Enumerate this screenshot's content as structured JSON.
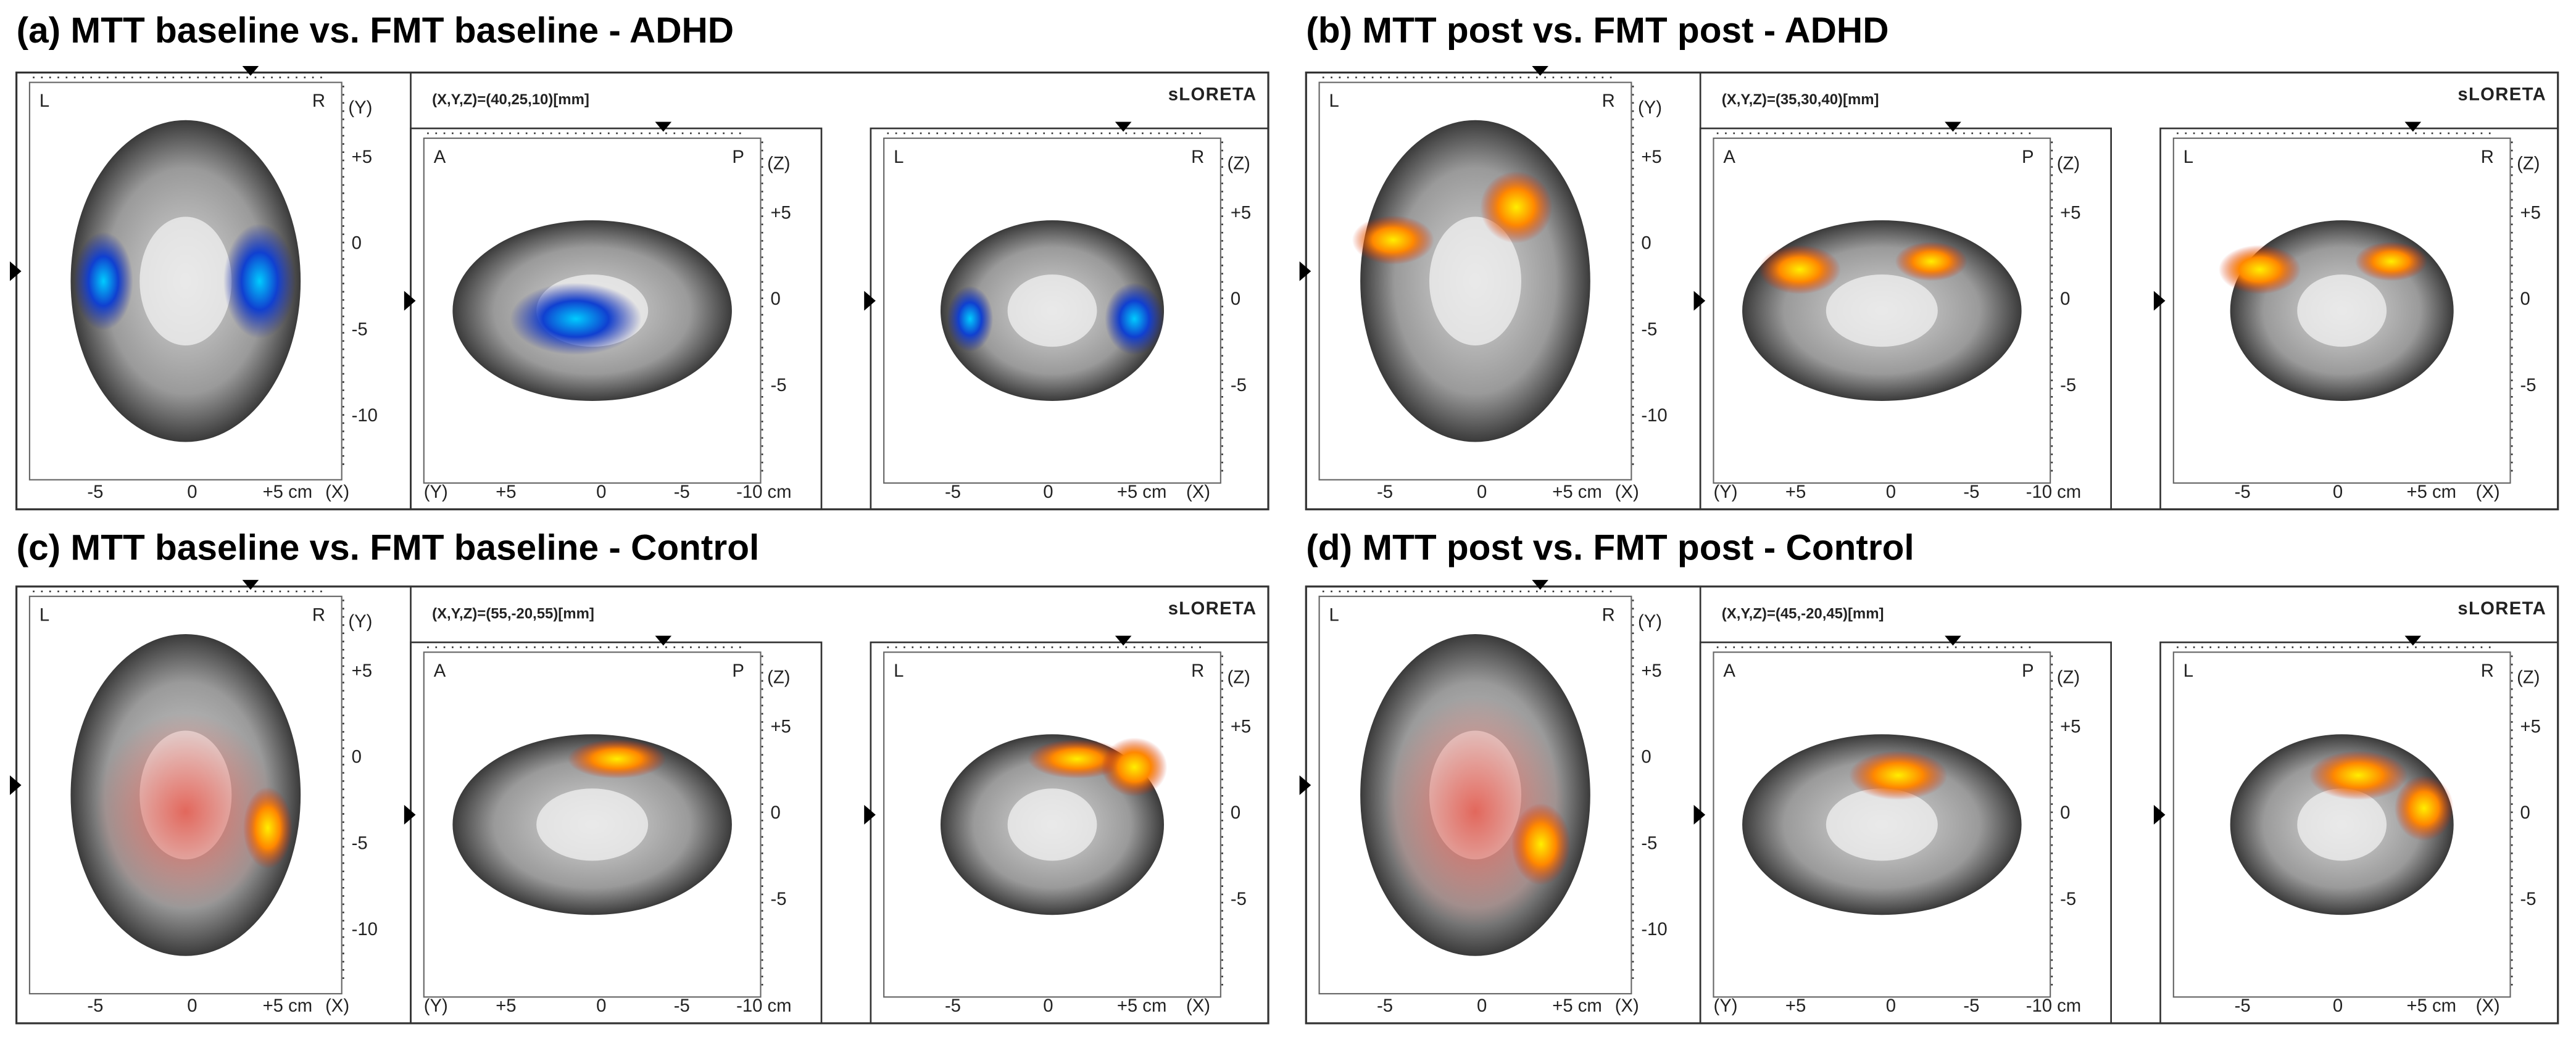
{
  "panels": [
    {
      "title": "(a) MTT baseline vs. FMT baseline - ADHD",
      "coords": "(X,Y,Z)=(40,25,10)[mm]",
      "brand": "sLORETA",
      "views": [
        {
          "left": "L",
          "right": "R",
          "axis": "(Y)",
          "side_ticks": [
            "+5",
            "0",
            "-5",
            "-10"
          ],
          "bottom_ticks": [
            "-5",
            "0",
            "+5 cm"
          ],
          "bottom_axis": "(X)"
        },
        {
          "left": "A",
          "right": "P",
          "axis": "(Z)",
          "side_ticks": [
            "+5",
            "0",
            "-5"
          ],
          "bottom_axis": "(Y)",
          "bottom_ticks": [
            "+5",
            "0",
            "-5",
            "-10 cm"
          ]
        },
        {
          "left": "L",
          "right": "R",
          "axis": "(Z)",
          "side_ticks": [
            "+5",
            "0",
            "-5"
          ],
          "bottom_ticks": [
            "-5",
            "0",
            "+5 cm"
          ],
          "bottom_axis": "(X)"
        }
      ]
    },
    {
      "title": "(b) MTT post vs. FMT post - ADHD",
      "coords": "(X,Y,Z)=(35,30,40)[mm]",
      "brand": "sLORETA",
      "views": [
        {
          "left": "L",
          "right": "R",
          "axis": "(Y)",
          "side_ticks": [
            "+5",
            "0",
            "-5",
            "-10"
          ],
          "bottom_ticks": [
            "-5",
            "0",
            "+5 cm"
          ],
          "bottom_axis": "(X)"
        },
        {
          "left": "A",
          "right": "P",
          "axis": "(Z)",
          "side_ticks": [
            "+5",
            "0",
            "-5"
          ],
          "bottom_axis": "(Y)",
          "bottom_ticks": [
            "+5",
            "0",
            "-5",
            "-10 cm"
          ]
        },
        {
          "left": "L",
          "right": "R",
          "axis": "(Z)",
          "side_ticks": [
            "+5",
            "0",
            "-5"
          ],
          "bottom_ticks": [
            "-5",
            "0",
            "+5 cm"
          ],
          "bottom_axis": "(X)"
        }
      ]
    },
    {
      "title": "(c) MTT baseline vs. FMT baseline - Control",
      "coords": "(X,Y,Z)=(55,-20,55)[mm]",
      "brand": "sLORETA",
      "views": [
        {
          "left": "L",
          "right": "R",
          "axis": "(Y)",
          "side_ticks": [
            "+5",
            "0",
            "-5",
            "-10"
          ],
          "bottom_ticks": [
            "-5",
            "0",
            "+5 cm"
          ],
          "bottom_axis": "(X)"
        },
        {
          "left": "A",
          "right": "P",
          "axis": "(Z)",
          "side_ticks": [
            "+5",
            "0",
            "-5"
          ],
          "bottom_axis": "(Y)",
          "bottom_ticks": [
            "+5",
            "0",
            "-5",
            "-10 cm"
          ]
        },
        {
          "left": "L",
          "right": "R",
          "axis": "(Z)",
          "side_ticks": [
            "+5",
            "0",
            "-5"
          ],
          "bottom_ticks": [
            "-5",
            "0",
            "+5 cm"
          ],
          "bottom_axis": "(X)"
        }
      ]
    },
    {
      "title": "(d) MTT post vs. FMT post - Control",
      "coords": "(X,Y,Z)=(45,-20,45)[mm]",
      "brand": "sLORETA",
      "views": [
        {
          "left": "L",
          "right": "R",
          "axis": "(Y)",
          "side_ticks": [
            "+5",
            "0",
            "-5",
            "-10"
          ],
          "bottom_ticks": [
            "-5",
            "0",
            "+5 cm"
          ],
          "bottom_axis": "(X)"
        },
        {
          "left": "A",
          "right": "P",
          "axis": "(Z)",
          "side_ticks": [
            "+5",
            "0",
            "-5"
          ],
          "bottom_axis": "(Y)",
          "bottom_ticks": [
            "+5",
            "0",
            "-5",
            "-10 cm"
          ]
        },
        {
          "left": "L",
          "right": "R",
          "axis": "(Z)",
          "side_ticks": [
            "+5",
            "0",
            "-5"
          ],
          "bottom_ticks": [
            "-5",
            "0",
            "+5 cm"
          ],
          "bottom_axis": "(X)"
        }
      ]
    }
  ]
}
